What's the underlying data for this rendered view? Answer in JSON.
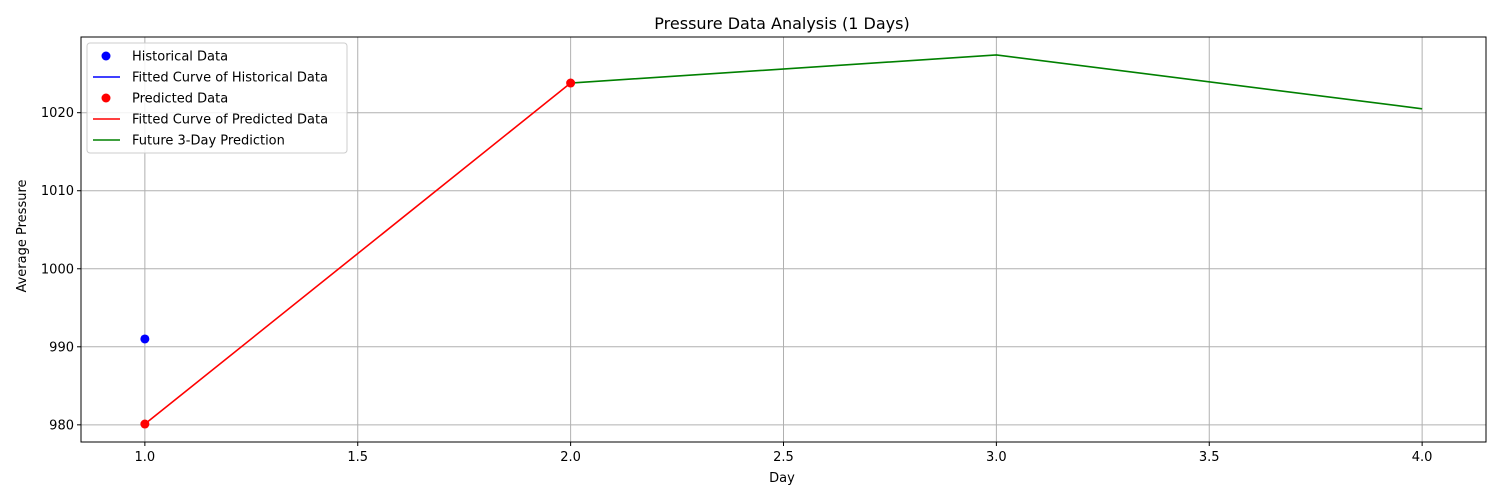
{
  "chart_data": {
    "type": "line",
    "title": "Pressure Data Analysis (1 Days)",
    "xlabel": "Day",
    "ylabel": "Average Pressure",
    "xlim": [
      0.85,
      4.15
    ],
    "ylim": [
      977.8,
      1029.7
    ],
    "xticks": [
      1.0,
      1.5,
      2.0,
      2.5,
      3.0,
      3.5,
      4.0
    ],
    "xtick_labels": [
      "1.0",
      "1.5",
      "2.0",
      "2.5",
      "3.0",
      "3.5",
      "4.0"
    ],
    "yticks": [
      980,
      990,
      1000,
      1010,
      1020
    ],
    "ytick_labels": [
      "980",
      "990",
      "1000",
      "1010",
      "1020"
    ],
    "grid": true,
    "legend_position": "top-left",
    "series": [
      {
        "name": "Historical Data",
        "kind": "points",
        "color": "#0000ff",
        "x": [
          1
        ],
        "y": [
          991.0
        ]
      },
      {
        "name": "Fitted Curve of Historical Data",
        "kind": "line",
        "color": "#0000ff",
        "x": [
          1
        ],
        "y": [
          991.0
        ]
      },
      {
        "name": "Predicted Data",
        "kind": "points",
        "color": "#ff0000",
        "x": [
          1,
          2
        ],
        "y": [
          980.1,
          1023.8
        ]
      },
      {
        "name": "Fitted Curve of Predicted Data",
        "kind": "line",
        "color": "#ff0000",
        "x": [
          1,
          2
        ],
        "y": [
          980.1,
          1023.8
        ]
      },
      {
        "name": "Future 3-Day Prediction",
        "kind": "line",
        "color": "#008000",
        "x": [
          2,
          3,
          4
        ],
        "y": [
          1023.8,
          1027.4,
          1020.5
        ]
      }
    ]
  }
}
